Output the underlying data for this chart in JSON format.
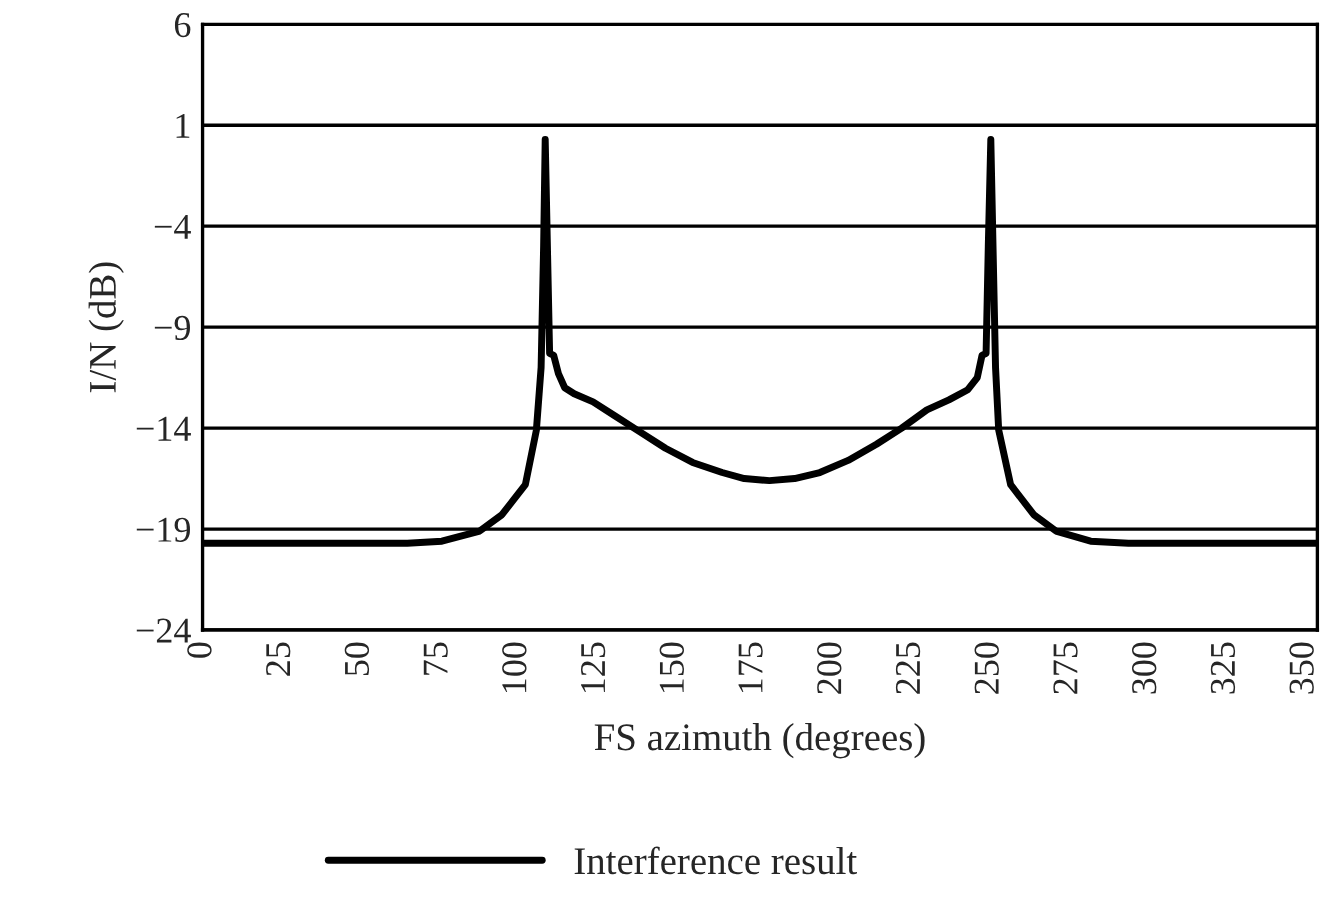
{
  "chart_data": {
    "type": "line",
    "xlabel": "FS azimuth (degrees)",
    "ylabel": "I/N (dB)",
    "x": [
      0,
      65,
      76,
      88,
      95,
      102.5,
      106,
      107.5,
      108.3,
      108.8,
      109.5,
      110.2,
      111.5,
      113,
      115,
      118,
      124,
      131,
      139,
      147,
      155.6,
      165,
      172,
      180,
      188,
      196,
      205,
      214,
      222,
      230,
      237,
      243,
      246,
      247.5,
      248.8,
      249.5,
      250.3,
      251,
      251.8,
      252.8,
      256.6,
      264,
      271,
      282,
      294,
      354
    ],
    "series": [
      {
        "name": "Interference result",
        "color": "#000000",
        "values": [
          -19.7,
          -19.7,
          -19.6,
          -19.1,
          -18.3,
          -16.8,
          -14.1,
          -11,
          -5,
          0.3,
          -5,
          -10.3,
          -10.4,
          -11.3,
          -12.0,
          -12.3,
          -12.7,
          -13.4,
          -14.2,
          -15.0,
          -15.7,
          -16.2,
          -16.5,
          -16.6,
          -16.5,
          -16.2,
          -15.6,
          -14.8,
          -14.0,
          -13.1,
          -12.6,
          -12.1,
          -11.5,
          -10.4,
          -10.3,
          -5,
          0.3,
          -5,
          -11,
          -14.1,
          -16.8,
          -18.3,
          -19.1,
          -19.6,
          -19.7,
          -19.7
        ]
      }
    ],
    "xlim": [
      0,
      354
    ],
    "xticks": [
      0,
      25,
      50,
      75,
      100,
      125,
      150,
      175,
      200,
      225,
      250,
      275,
      300,
      325,
      350
    ],
    "ylim": [
      -24,
      6
    ],
    "yticks": [
      {
        "value": -24,
        "label": "−24"
      },
      {
        "value": -19,
        "label": "−19"
      },
      {
        "value": -14,
        "label": "−14"
      },
      {
        "value": -9,
        "label": "−9"
      },
      {
        "value": -4,
        "label": "−4"
      },
      1,
      6
    ],
    "grid": "y",
    "legend": "bottom",
    "marker": "none",
    "line_style": "solid"
  }
}
